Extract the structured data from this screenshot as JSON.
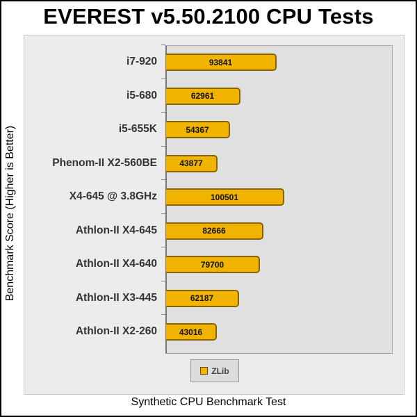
{
  "chart_data": {
    "type": "bar",
    "orientation": "horizontal",
    "title": "EVEREST v5.50.2100 CPU Tests",
    "xlabel": "Synthetic CPU Benchmark Test",
    "ylabel": "Benchmark Score (Higher is Better)",
    "categories": [
      "i7-920",
      "i5-680",
      "i5-655K",
      "Phenom-II X2-560BE",
      "X4-645 @ 3.8GHz",
      "Athlon-II X4-645",
      "Athlon-II X4-640",
      "Athlon-II X3-445",
      "Athlon-II X2-260"
    ],
    "series": [
      {
        "name": "ZLib",
        "color": "#f0b400",
        "values": [
          93841,
          62961,
          54367,
          43877,
          100501,
          82666,
          79700,
          62187,
          43016
        ]
      }
    ],
    "values": [
      93841,
      62961,
      54367,
      43877,
      100501,
      82666,
      79700,
      62187,
      43016
    ],
    "value_labels": [
      "93841",
      "62961",
      "54367",
      "43877",
      "100501",
      "82666",
      "79700",
      "62187",
      "43016"
    ],
    "legend": {
      "position": "bottom",
      "entries": [
        "ZLib"
      ]
    },
    "grid": false,
    "xlim": [
      0,
      180000
    ]
  },
  "chart": {
    "title": "EVEREST v5.50.2100 CPU Tests",
    "xlabel": "Synthetic CPU Benchmark Test",
    "ylabel": "Benchmark Score (Higher is Better)",
    "legend_label": "ZLib"
  }
}
